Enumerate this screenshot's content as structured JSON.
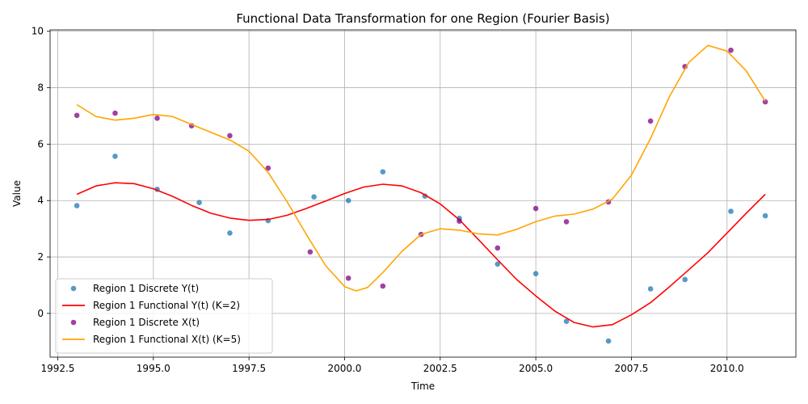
{
  "chart_data": {
    "type": "scatter",
    "title": "Functional Data Transformation for one Region (Fourier Basis)",
    "xlabel": "Time",
    "ylabel": "Value",
    "xlim": [
      1992.3,
      2011.8
    ],
    "ylim": [
      -1.55,
      10.05
    ],
    "xticks": [
      1992.5,
      1995.0,
      1997.5,
      2000.0,
      2002.5,
      2005.0,
      2007.5,
      2010.0
    ],
    "xtick_labels": [
      "1992.5",
      "1995.0",
      "1997.5",
      "2000.0",
      "2002.5",
      "2005.0",
      "2007.5",
      "2010.0"
    ],
    "yticks": [
      0,
      2,
      4,
      6,
      8,
      10
    ],
    "ytick_labels": [
      "0",
      "2",
      "4",
      "6",
      "8",
      "10"
    ],
    "grid": true,
    "legend_position": "lower-left",
    "series": [
      {
        "name": "Region 1 Discrete Y(t)",
        "kind": "scatter",
        "color": "#1f77b4",
        "x": [
          1993.0,
          1994.0,
          1995.1,
          1996.2,
          1997.0,
          1998.0,
          1999.2,
          2000.1,
          2001.0,
          2002.1,
          2003.0,
          2004.0,
          2005.0,
          2005.8,
          2006.9,
          2008.0,
          2008.9,
          2010.1,
          2011.0
        ],
        "y": [
          3.82,
          5.57,
          4.4,
          3.93,
          2.85,
          3.29,
          4.13,
          4.0,
          5.02,
          4.16,
          3.37,
          1.75,
          1.41,
          -0.28,
          -0.98,
          0.87,
          1.2,
          3.62,
          3.46
        ]
      },
      {
        "name": "Region 1 Functional Y(t) (K=2)",
        "kind": "line",
        "color": "#ff0000",
        "x": [
          1993.0,
          1993.5,
          1994.0,
          1994.5,
          1995.0,
          1995.5,
          1996.0,
          1996.5,
          1997.0,
          1997.5,
          1998.0,
          1998.5,
          1999.0,
          1999.5,
          2000.0,
          2000.5,
          2001.0,
          2001.5,
          2002.0,
          2002.5,
          2003.0,
          2003.5,
          2004.0,
          2004.5,
          2005.0,
          2005.5,
          2006.0,
          2006.5,
          2007.0,
          2007.5,
          2008.0,
          2008.5,
          2009.0,
          2009.5,
          2010.0,
          2010.5,
          2011.0
        ],
        "y": [
          4.22,
          4.52,
          4.63,
          4.6,
          4.42,
          4.15,
          3.83,
          3.55,
          3.38,
          3.3,
          3.33,
          3.48,
          3.72,
          3.98,
          4.25,
          4.48,
          4.58,
          4.52,
          4.28,
          3.88,
          3.32,
          2.62,
          1.9,
          1.2,
          0.62,
          0.08,
          -0.32,
          -0.48,
          -0.4,
          -0.05,
          0.38,
          0.95,
          1.55,
          2.15,
          2.85,
          3.55,
          4.22
        ]
      },
      {
        "name": "Region 1 Discrete X(t)",
        "kind": "scatter",
        "color": "#800080",
        "x": [
          1993.0,
          1994.0,
          1995.1,
          1996.0,
          1997.0,
          1998.0,
          1999.1,
          2000.1,
          2001.0,
          2002.0,
          2003.0,
          2004.0,
          2005.0,
          2005.8,
          2006.9,
          2008.0,
          2008.9,
          2010.1,
          2011.0
        ],
        "y": [
          7.02,
          7.1,
          6.92,
          6.65,
          6.3,
          5.15,
          2.18,
          1.25,
          0.97,
          2.8,
          3.27,
          2.32,
          3.72,
          3.25,
          3.95,
          6.82,
          8.75,
          9.33,
          7.5
        ]
      },
      {
        "name": "Region 1 Functional X(t) (K=5)",
        "kind": "line",
        "color": "#ffa500",
        "x": [
          1993.0,
          1993.5,
          1994.0,
          1994.5,
          1995.0,
          1995.5,
          1996.0,
          1996.5,
          1997.0,
          1997.5,
          1998.0,
          1998.5,
          1999.0,
          1999.5,
          2000.0,
          2000.3,
          2000.6,
          2001.0,
          2001.5,
          2002.0,
          2002.5,
          2003.0,
          2003.5,
          2004.0,
          2004.5,
          2005.0,
          2005.5,
          2006.0,
          2006.5,
          2007.0,
          2007.5,
          2008.0,
          2008.5,
          2009.0,
          2009.5,
          2010.0,
          2010.5,
          2011.0
        ],
        "y": [
          7.4,
          6.98,
          6.85,
          6.92,
          7.05,
          6.98,
          6.7,
          6.42,
          6.15,
          5.75,
          5.0,
          3.95,
          2.8,
          1.7,
          0.95,
          0.8,
          0.92,
          1.45,
          2.2,
          2.8,
          3.0,
          2.95,
          2.82,
          2.78,
          2.98,
          3.25,
          3.45,
          3.52,
          3.7,
          4.05,
          4.9,
          6.2,
          7.7,
          8.9,
          9.5,
          9.3,
          8.6,
          7.52
        ]
      }
    ]
  }
}
